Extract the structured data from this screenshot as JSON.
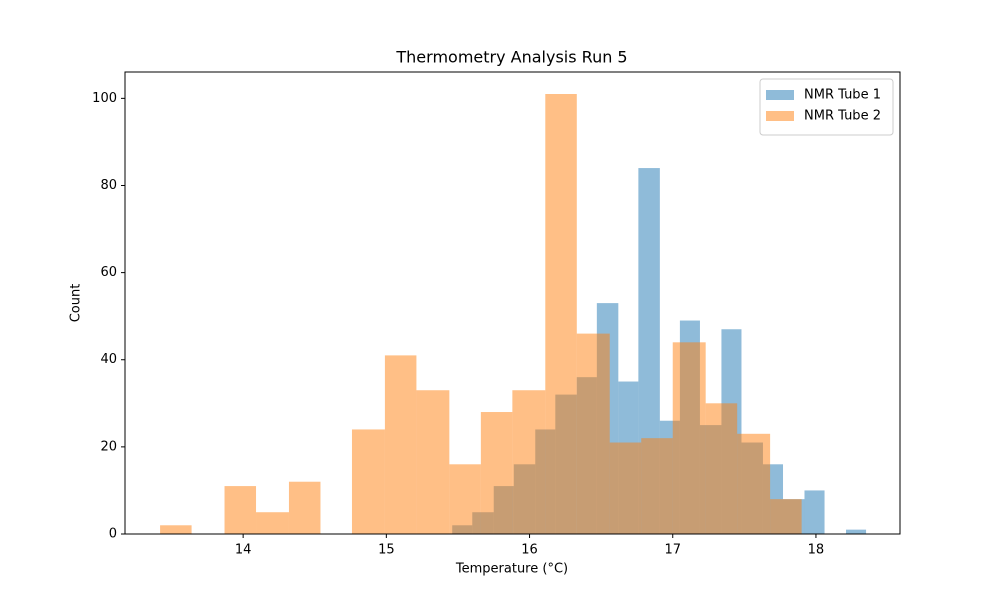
{
  "chart_data": {
    "type": "histogram",
    "title": "Thermometry Analysis Run 5",
    "x_label": "Temperature (°C)",
    "y_label": "Count",
    "xlim": [
      13.175,
      18.587
    ],
    "ylim": [
      0,
      106.05
    ],
    "xticks": [
      14,
      15,
      16,
      17,
      18
    ],
    "yticks": [
      0,
      20,
      40,
      60,
      80,
      100
    ],
    "legend": "upper right",
    "alpha": 0.5,
    "series": [
      {
        "name": "NMR Tube 1",
        "color": "#1f77b4",
        "bins": [
          15.46,
          15.6,
          15.75,
          15.89,
          16.04,
          16.18,
          16.33,
          16.47,
          16.62,
          16.76,
          16.91,
          17.05,
          17.19,
          17.34,
          17.48,
          17.63,
          17.77,
          17.92,
          18.06,
          18.21,
          18.35
        ],
        "values": [
          2,
          5,
          11,
          16,
          24,
          32,
          36,
          53,
          35,
          84,
          26,
          49,
          25,
          47,
          21,
          16,
          8,
          10,
          0,
          1
        ]
      },
      {
        "name": "NMR Tube 2",
        "color": "#ff7f0e",
        "bins": [
          13.42,
          13.64,
          13.87,
          14.09,
          14.32,
          14.54,
          14.76,
          14.99,
          15.21,
          15.44,
          15.66,
          15.88,
          16.11,
          16.33,
          16.56,
          16.78,
          17.0,
          17.23,
          17.45,
          17.68,
          17.9
        ],
        "values": [
          2,
          0,
          11,
          5,
          12,
          0,
          24,
          41,
          33,
          16,
          28,
          33,
          101,
          46,
          21,
          22,
          44,
          30,
          23,
          8
        ]
      }
    ]
  }
}
